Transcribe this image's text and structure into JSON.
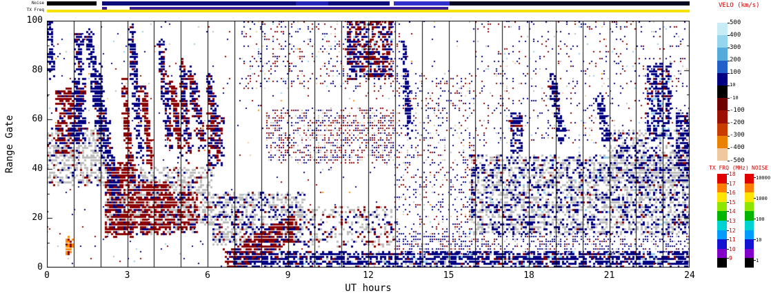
{
  "chart_data": {
    "type": "heatmap",
    "xlabel": "UT hours",
    "ylabel": "Range Gate",
    "xlim": [
      0,
      24
    ],
    "ylim": [
      0,
      100
    ],
    "x_ticks": [
      0,
      3,
      6,
      9,
      12,
      15,
      18,
      21,
      24
    ],
    "x_minor_step": 1,
    "y_ticks": [
      0,
      20,
      40,
      60,
      80,
      100
    ],
    "y_minor_step": 10,
    "vertical_lines_step": 1,
    "grid": false,
    "palette": {
      "b": "#000082",
      "r": "#8b0000",
      "g": "#bdbdbd",
      "o": "#ff8c00",
      "l": "#8fd2ee",
      "p": "#f0c8a0"
    },
    "strips": {
      "noise": {
        "label": "Noise",
        "segments": [
          {
            "x0": 0,
            "x1": 1.85,
            "color": "#000000"
          },
          {
            "x0": 2.05,
            "x1": 9.3,
            "color": "#0a0a78"
          },
          {
            "x0": 9.3,
            "x1": 10.5,
            "color": "#2222b4"
          },
          {
            "x0": 10.5,
            "x1": 12.8,
            "color": "#0a0a78"
          },
          {
            "x0": 12.95,
            "x1": 15.05,
            "color": "#3030cc"
          },
          {
            "x0": 15.05,
            "x1": 24,
            "color": "#08081e"
          }
        ]
      },
      "txfreq": {
        "label": "TX Freq",
        "base_color": "#f5e400",
        "segments": [
          {
            "x0": 2.05,
            "x1": 2.25,
            "color": "#3c1e96"
          },
          {
            "x0": 3.1,
            "x1": 15.0,
            "color": "#3c1e96"
          }
        ]
      }
    },
    "colorbars": {
      "velo": {
        "title": "VELO (km/s)",
        "ticks": [
          {
            "label": "500"
          },
          {
            "label": "400"
          },
          {
            "label": "300"
          },
          {
            "label": "200"
          },
          {
            "label": "100"
          },
          {
            "label": "10",
            "small": true
          },
          {
            "label": "-10",
            "small": true
          },
          {
            "label": "-100"
          },
          {
            "label": "-200"
          },
          {
            "label": "-300"
          },
          {
            "label": "-400"
          },
          {
            "label": "-500"
          }
        ],
        "segments": [
          "#c8ecf6",
          "#96d5ee",
          "#55aadc",
          "#2060c8",
          "#000082",
          "#000000",
          "#6e0000",
          "#9b1000",
          "#c83c00",
          "#ea8200",
          "#f0c8a0"
        ]
      },
      "txfrq": {
        "title": "TX FRQ (MHz)",
        "ticks": [
          {
            "label": "18"
          },
          {
            "label": "17"
          },
          {
            "label": "16"
          },
          {
            "label": "15"
          },
          {
            "label": "14"
          },
          {
            "label": "13"
          },
          {
            "label": "12"
          },
          {
            "label": "11"
          },
          {
            "label": "10"
          },
          {
            "label": "9"
          }
        ],
        "segments": [
          "#e10000",
          "#ff7d00",
          "#ffe400",
          "#8ce600",
          "#00b400",
          "#00d2d2",
          "#009bff",
          "#1414d2",
          "#8200c8",
          "#000000"
        ]
      },
      "noise": {
        "title": "NOISE",
        "ticks": [
          {
            "label": "10000",
            "pos": 0.04
          },
          {
            "label": "1000",
            "pos": 0.26
          },
          {
            "label": "100",
            "pos": 0.48
          },
          {
            "label": "10",
            "pos": 0.7
          },
          {
            "label": "1",
            "pos": 0.92
          }
        ],
        "segments": [
          "#e10000",
          "#ff7d00",
          "#ffe400",
          "#8ce600",
          "#00b400",
          "#00d2d2",
          "#009bff",
          "#1414d2",
          "#8200c8",
          "#000000"
        ]
      }
    },
    "regions": [
      {
        "t": "s",
        "x0": 0,
        "x1": 24,
        "g0": 0,
        "g1": 100,
        "n": 750,
        "s": 2,
        "c": [
          [
            "b",
            0.42
          ],
          [
            "r",
            0.3
          ],
          [
            "g",
            0.1
          ],
          [
            "l",
            0.08
          ],
          [
            "p",
            0.06
          ],
          [
            "o",
            0.04
          ]
        ]
      },
      {
        "t": "s",
        "x0": 0,
        "x1": 2.3,
        "g0": 33,
        "g1": 56,
        "n": 520,
        "s": 3,
        "c": [
          [
            "g",
            0.78
          ],
          [
            "b",
            0.12
          ],
          [
            "r",
            0.1
          ]
        ]
      },
      {
        "t": "s",
        "x0": 2.3,
        "x1": 6.2,
        "g0": 17,
        "g1": 40,
        "n": 900,
        "s": 3,
        "c": [
          [
            "g",
            0.72
          ],
          [
            "b",
            0.14
          ],
          [
            "r",
            0.14
          ]
        ]
      },
      {
        "t": "s",
        "x0": 6.2,
        "x1": 9.6,
        "g0": 9,
        "g1": 30,
        "n": 800,
        "s": 3,
        "c": [
          [
            "g",
            0.6
          ],
          [
            "b",
            0.3
          ],
          [
            "r",
            0.1
          ]
        ]
      },
      {
        "t": "s",
        "x0": 9.6,
        "x1": 13,
        "g0": 8,
        "g1": 24,
        "n": 300,
        "s": 3,
        "c": [
          [
            "g",
            0.55
          ],
          [
            "b",
            0.25
          ],
          [
            "r",
            0.2
          ]
        ]
      },
      {
        "t": "s",
        "x0": 15.8,
        "x1": 24,
        "g0": 13,
        "g1": 45,
        "n": 2800,
        "s": 3,
        "c": [
          [
            "g",
            0.56
          ],
          [
            "b",
            0.36
          ],
          [
            "r",
            0.05
          ],
          [
            "l",
            0.03
          ]
        ]
      },
      {
        "t": "s",
        "x0": 21,
        "x1": 24,
        "g0": 34,
        "g1": 55,
        "n": 500,
        "s": 3,
        "c": [
          [
            "g",
            0.6
          ],
          [
            "b",
            0.35
          ],
          [
            "r",
            0.05
          ]
        ]
      },
      {
        "t": "s",
        "x0": 2.2,
        "x1": 3.3,
        "g0": 12,
        "g1": 42,
        "n": 620,
        "s": 3,
        "c": [
          [
            "r",
            0.8
          ],
          [
            "b",
            0.1
          ],
          [
            "g",
            0.1
          ]
        ]
      },
      {
        "t": "s",
        "x0": 3.3,
        "x1": 4.6,
        "g0": 13,
        "g1": 34,
        "n": 560,
        "s": 3,
        "c": [
          [
            "r",
            0.75
          ],
          [
            "b",
            0.1
          ],
          [
            "g",
            0.15
          ]
        ]
      },
      {
        "t": "s",
        "x0": 4.6,
        "x1": 5.6,
        "g0": 14,
        "g1": 30,
        "n": 360,
        "s": 3,
        "c": [
          [
            "r",
            0.6
          ],
          [
            "g",
            0.25
          ],
          [
            "b",
            0.15
          ]
        ]
      },
      {
        "t": "s",
        "x0": 0.72,
        "x1": 0.95,
        "g0": 5,
        "g1": 12,
        "n": 70,
        "s": 3,
        "c": [
          [
            "o",
            0.9
          ],
          [
            "r",
            0.1
          ]
        ]
      },
      {
        "t": "d",
        "x0": 0.08,
        "g0": 100,
        "x1": 0.18,
        "g1": 78,
        "n": 80,
        "jx": 0.1,
        "jg": 3,
        "s": 3,
        "c": [
          [
            "b",
            1
          ]
        ]
      },
      {
        "t": "s",
        "x0": 0.35,
        "x1": 0.95,
        "g0": 45,
        "g1": 72,
        "n": 200,
        "s": 3,
        "c": [
          [
            "r",
            0.8
          ],
          [
            "b",
            0.2
          ]
        ]
      },
      {
        "t": "s",
        "x0": 0.95,
        "x1": 1.45,
        "g0": 50,
        "g1": 76,
        "n": 240,
        "s": 3,
        "c": [
          [
            "b",
            0.85
          ],
          [
            "r",
            0.15
          ]
        ]
      },
      {
        "t": "s",
        "x0": 1.05,
        "x1": 1.35,
        "g0": 78,
        "g1": 95,
        "n": 90,
        "s": 3,
        "c": [
          [
            "b",
            0.9
          ],
          [
            "r",
            0.1
          ]
        ]
      },
      {
        "t": "d",
        "x0": 1.55,
        "g0": 95,
        "x1": 2.1,
        "g1": 45,
        "n": 200,
        "jx": 0.12,
        "jg": 4,
        "s": 3,
        "c": [
          [
            "b",
            0.95
          ],
          [
            "r",
            0.05
          ]
        ]
      },
      {
        "t": "d",
        "x0": 1.85,
        "g0": 80,
        "x1": 2.65,
        "g1": 22,
        "n": 260,
        "jx": 0.14,
        "jg": 4,
        "s": 3,
        "c": [
          [
            "b",
            0.9
          ],
          [
            "r",
            0.1
          ]
        ]
      },
      {
        "t": "d",
        "x0": 2.85,
        "g0": 75,
        "x1": 3.12,
        "g1": 40,
        "n": 160,
        "jx": 0.1,
        "jg": 4,
        "s": 3,
        "c": [
          [
            "r",
            0.9
          ],
          [
            "b",
            0.1
          ]
        ]
      },
      {
        "t": "d",
        "x0": 3.15,
        "g0": 95,
        "x1": 3.5,
        "g1": 45,
        "n": 190,
        "jx": 0.12,
        "jg": 4,
        "s": 3,
        "c": [
          [
            "b",
            0.9
          ],
          [
            "r",
            0.1
          ]
        ]
      },
      {
        "t": "d",
        "x0": 3.6,
        "g0": 72,
        "x1": 3.88,
        "g1": 42,
        "n": 150,
        "jx": 0.1,
        "jg": 4,
        "s": 3,
        "c": [
          [
            "r",
            0.85
          ],
          [
            "b",
            0.15
          ]
        ]
      },
      {
        "t": "d",
        "x0": 4.25,
        "g0": 90,
        "x1": 4.6,
        "g1": 50,
        "n": 170,
        "jx": 0.12,
        "jg": 4,
        "s": 3,
        "c": [
          [
            "b",
            0.8
          ],
          [
            "r",
            0.2
          ]
        ]
      },
      {
        "t": "d",
        "x0": 4.65,
        "g0": 76,
        "x1": 4.98,
        "g1": 48,
        "n": 150,
        "jx": 0.1,
        "jg": 4,
        "s": 3,
        "c": [
          [
            "r",
            0.8
          ],
          [
            "b",
            0.2
          ]
        ]
      },
      {
        "t": "d",
        "x0": 5.02,
        "g0": 82,
        "x1": 5.32,
        "g1": 45,
        "n": 150,
        "jx": 0.12,
        "jg": 4,
        "s": 3,
        "c": [
          [
            "b",
            0.7
          ],
          [
            "r",
            0.3
          ]
        ]
      },
      {
        "t": "d",
        "x0": 5.35,
        "g0": 78,
        "x1": 5.8,
        "g1": 50,
        "n": 150,
        "jx": 0.14,
        "jg": 4,
        "s": 3,
        "c": [
          [
            "r",
            0.5
          ],
          [
            "b",
            0.5
          ]
        ]
      },
      {
        "t": "d",
        "x0": 6.05,
        "g0": 75,
        "x1": 6.38,
        "g1": 50,
        "n": 130,
        "jx": 0.12,
        "jg": 4,
        "s": 3,
        "c": [
          [
            "b",
            0.8
          ],
          [
            "r",
            0.2
          ]
        ]
      },
      {
        "t": "d",
        "x0": 6.8,
        "g0": 2,
        "x1": 9.2,
        "g1": 16,
        "n": 520,
        "jx": 0.2,
        "jg": 5,
        "s": 3,
        "c": [
          [
            "r",
            0.82
          ],
          [
            "b",
            0.18
          ]
        ]
      },
      {
        "t": "s",
        "x0": 7.0,
        "x1": 24,
        "g0": 0,
        "g1": 6,
        "n": 1700,
        "s": 3,
        "c": [
          [
            "b",
            0.8
          ],
          [
            "r",
            0.08
          ],
          [
            "l",
            0.06
          ],
          [
            "g",
            0.06
          ]
        ]
      },
      {
        "t": "s",
        "x0": 8.2,
        "x1": 13,
        "g0": 42,
        "g1": 64,
        "n": 950,
        "s": 2,
        "c": [
          [
            "r",
            0.45
          ],
          [
            "b",
            0.35
          ],
          [
            "g",
            0.14
          ],
          [
            "p",
            0.06
          ]
        ]
      },
      {
        "t": "s",
        "x0": 6.0,
        "x1": 6.6,
        "g0": 40,
        "g1": 62,
        "n": 140,
        "s": 3,
        "c": [
          [
            "r",
            0.6
          ],
          [
            "b",
            0.4
          ]
        ]
      },
      {
        "t": "s",
        "x0": 7.3,
        "x1": 13.2,
        "g0": 72,
        "g1": 100,
        "n": 470,
        "s": 2,
        "c": [
          [
            "b",
            0.45
          ],
          [
            "r",
            0.4
          ],
          [
            "l",
            0.08
          ],
          [
            "p",
            0.07
          ]
        ]
      },
      {
        "t": "s",
        "x0": 11.2,
        "x1": 12.9,
        "g0": 76,
        "g1": 100,
        "n": 480,
        "s": 3,
        "c": [
          [
            "b",
            0.5
          ],
          [
            "r",
            0.44
          ],
          [
            "l",
            0.06
          ]
        ]
      },
      {
        "t": "s",
        "x0": 13,
        "x1": 16,
        "g0": 5,
        "g1": 78,
        "n": 650,
        "s": 2,
        "c": [
          [
            "b",
            0.5
          ],
          [
            "r",
            0.34
          ],
          [
            "g",
            0.1
          ],
          [
            "p",
            0.06
          ]
        ]
      },
      {
        "t": "d",
        "x0": 13.35,
        "g0": 90,
        "x1": 13.55,
        "g1": 55,
        "n": 120,
        "jx": 0.1,
        "jg": 4,
        "s": 3,
        "c": [
          [
            "b",
            1
          ]
        ]
      },
      {
        "t": "s",
        "x0": 13,
        "x1": 24,
        "g0": 5,
        "g1": 13,
        "n": 650,
        "s": 2,
        "c": [
          [
            "b",
            0.7
          ],
          [
            "r",
            0.15
          ],
          [
            "g",
            0.15
          ]
        ]
      },
      {
        "t": "s",
        "x0": 16,
        "x1": 24,
        "g0": 50,
        "g1": 100,
        "n": 520,
        "s": 2,
        "c": [
          [
            "b",
            0.55
          ],
          [
            "r",
            0.25
          ],
          [
            "g",
            0.08
          ],
          [
            "l",
            0.07
          ],
          [
            "p",
            0.05
          ]
        ]
      },
      {
        "t": "d",
        "x0": 18.85,
        "g0": 75,
        "x1": 19.25,
        "g1": 52,
        "n": 130,
        "jx": 0.12,
        "jg": 4,
        "s": 3,
        "c": [
          [
            "b",
            0.95
          ],
          [
            "r",
            0.05
          ]
        ]
      },
      {
        "t": "s",
        "x0": 22.4,
        "x1": 23.3,
        "g0": 52,
        "g1": 82,
        "n": 320,
        "s": 3,
        "c": [
          [
            "b",
            0.8
          ],
          [
            "r",
            0.1
          ],
          [
            "l",
            0.1
          ]
        ]
      },
      {
        "t": "s",
        "x0": 23.5,
        "x1": 24,
        "g0": 38,
        "g1": 62,
        "n": 200,
        "s": 3,
        "c": [
          [
            "b",
            0.75
          ],
          [
            "g",
            0.15
          ],
          [
            "r",
            0.1
          ]
        ]
      },
      {
        "t": "d",
        "x0": 20.6,
        "g0": 68,
        "x1": 20.95,
        "g1": 50,
        "n": 90,
        "jx": 0.12,
        "jg": 4,
        "s": 3,
        "c": [
          [
            "b",
            1
          ]
        ]
      },
      {
        "t": "s",
        "x0": 17.3,
        "x1": 17.75,
        "g0": 46,
        "g1": 62,
        "n": 100,
        "s": 3,
        "c": [
          [
            "b",
            0.85
          ],
          [
            "r",
            0.15
          ]
        ]
      }
    ]
  }
}
